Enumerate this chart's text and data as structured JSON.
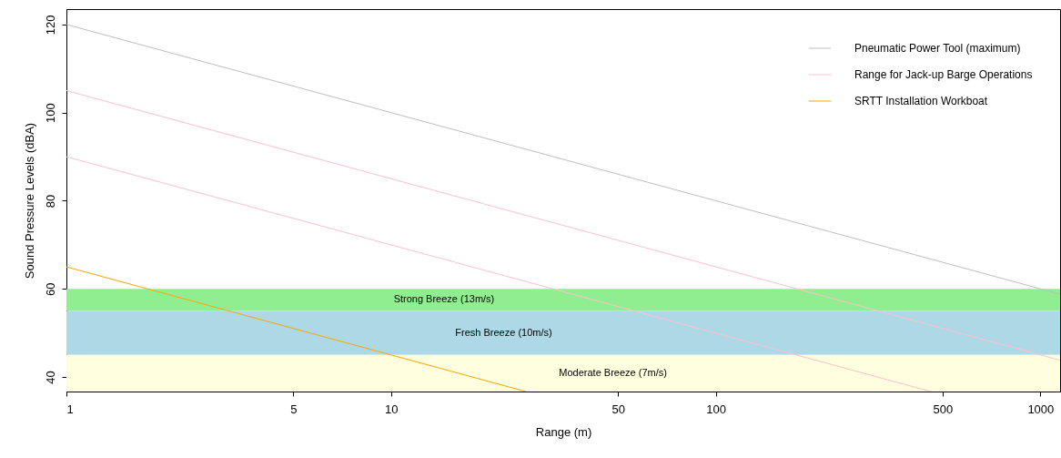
{
  "chart_data": {
    "type": "line",
    "xlabel": "Range (m)",
    "ylabel": "Sound Pressure Levels (dBA)",
    "log": "x",
    "xlim": [
      1,
      1150
    ],
    "ylim": [
      36.7,
      123.5
    ],
    "xticks": [
      1,
      5,
      10,
      50,
      100,
      500,
      1000
    ],
    "yticks": [
      40,
      60,
      80,
      100,
      120
    ],
    "grid": false,
    "legend": "top right",
    "series": [
      {
        "name": "Pneumatic Power Tool (maximum)",
        "color": "#bebebe",
        "x": [
          1,
          1150
        ],
        "values": [
          120,
          58.8
        ]
      },
      {
        "name": "Range for Jack-up Barge Operations",
        "color": "#ffc0cb",
        "x": [
          1,
          1150
        ],
        "values": [
          105,
          43.8
        ]
      },
      {
        "color": "#ffc0cb",
        "x": [
          1,
          460
        ],
        "values": [
          90,
          36.7
        ]
      },
      {
        "name": "SRTT Installation Workboat",
        "color": "#ffa500",
        "x": [
          1,
          26
        ],
        "values": [
          65,
          36.7
        ]
      }
    ],
    "bands": [
      {
        "axis": "y",
        "from": 55,
        "to": 60,
        "label": "Strong Breeze (13m/s)",
        "color": "#90ee90"
      },
      {
        "axis": "y",
        "from": 45,
        "to": 55,
        "label": "Fresh Breeze (10m/s)",
        "color": "#add8e6"
      },
      {
        "axis": "y",
        "from": 36.7,
        "to": 45,
        "label": "Moderate Breeze (7m/s)",
        "color": "#ffffe0"
      }
    ]
  }
}
